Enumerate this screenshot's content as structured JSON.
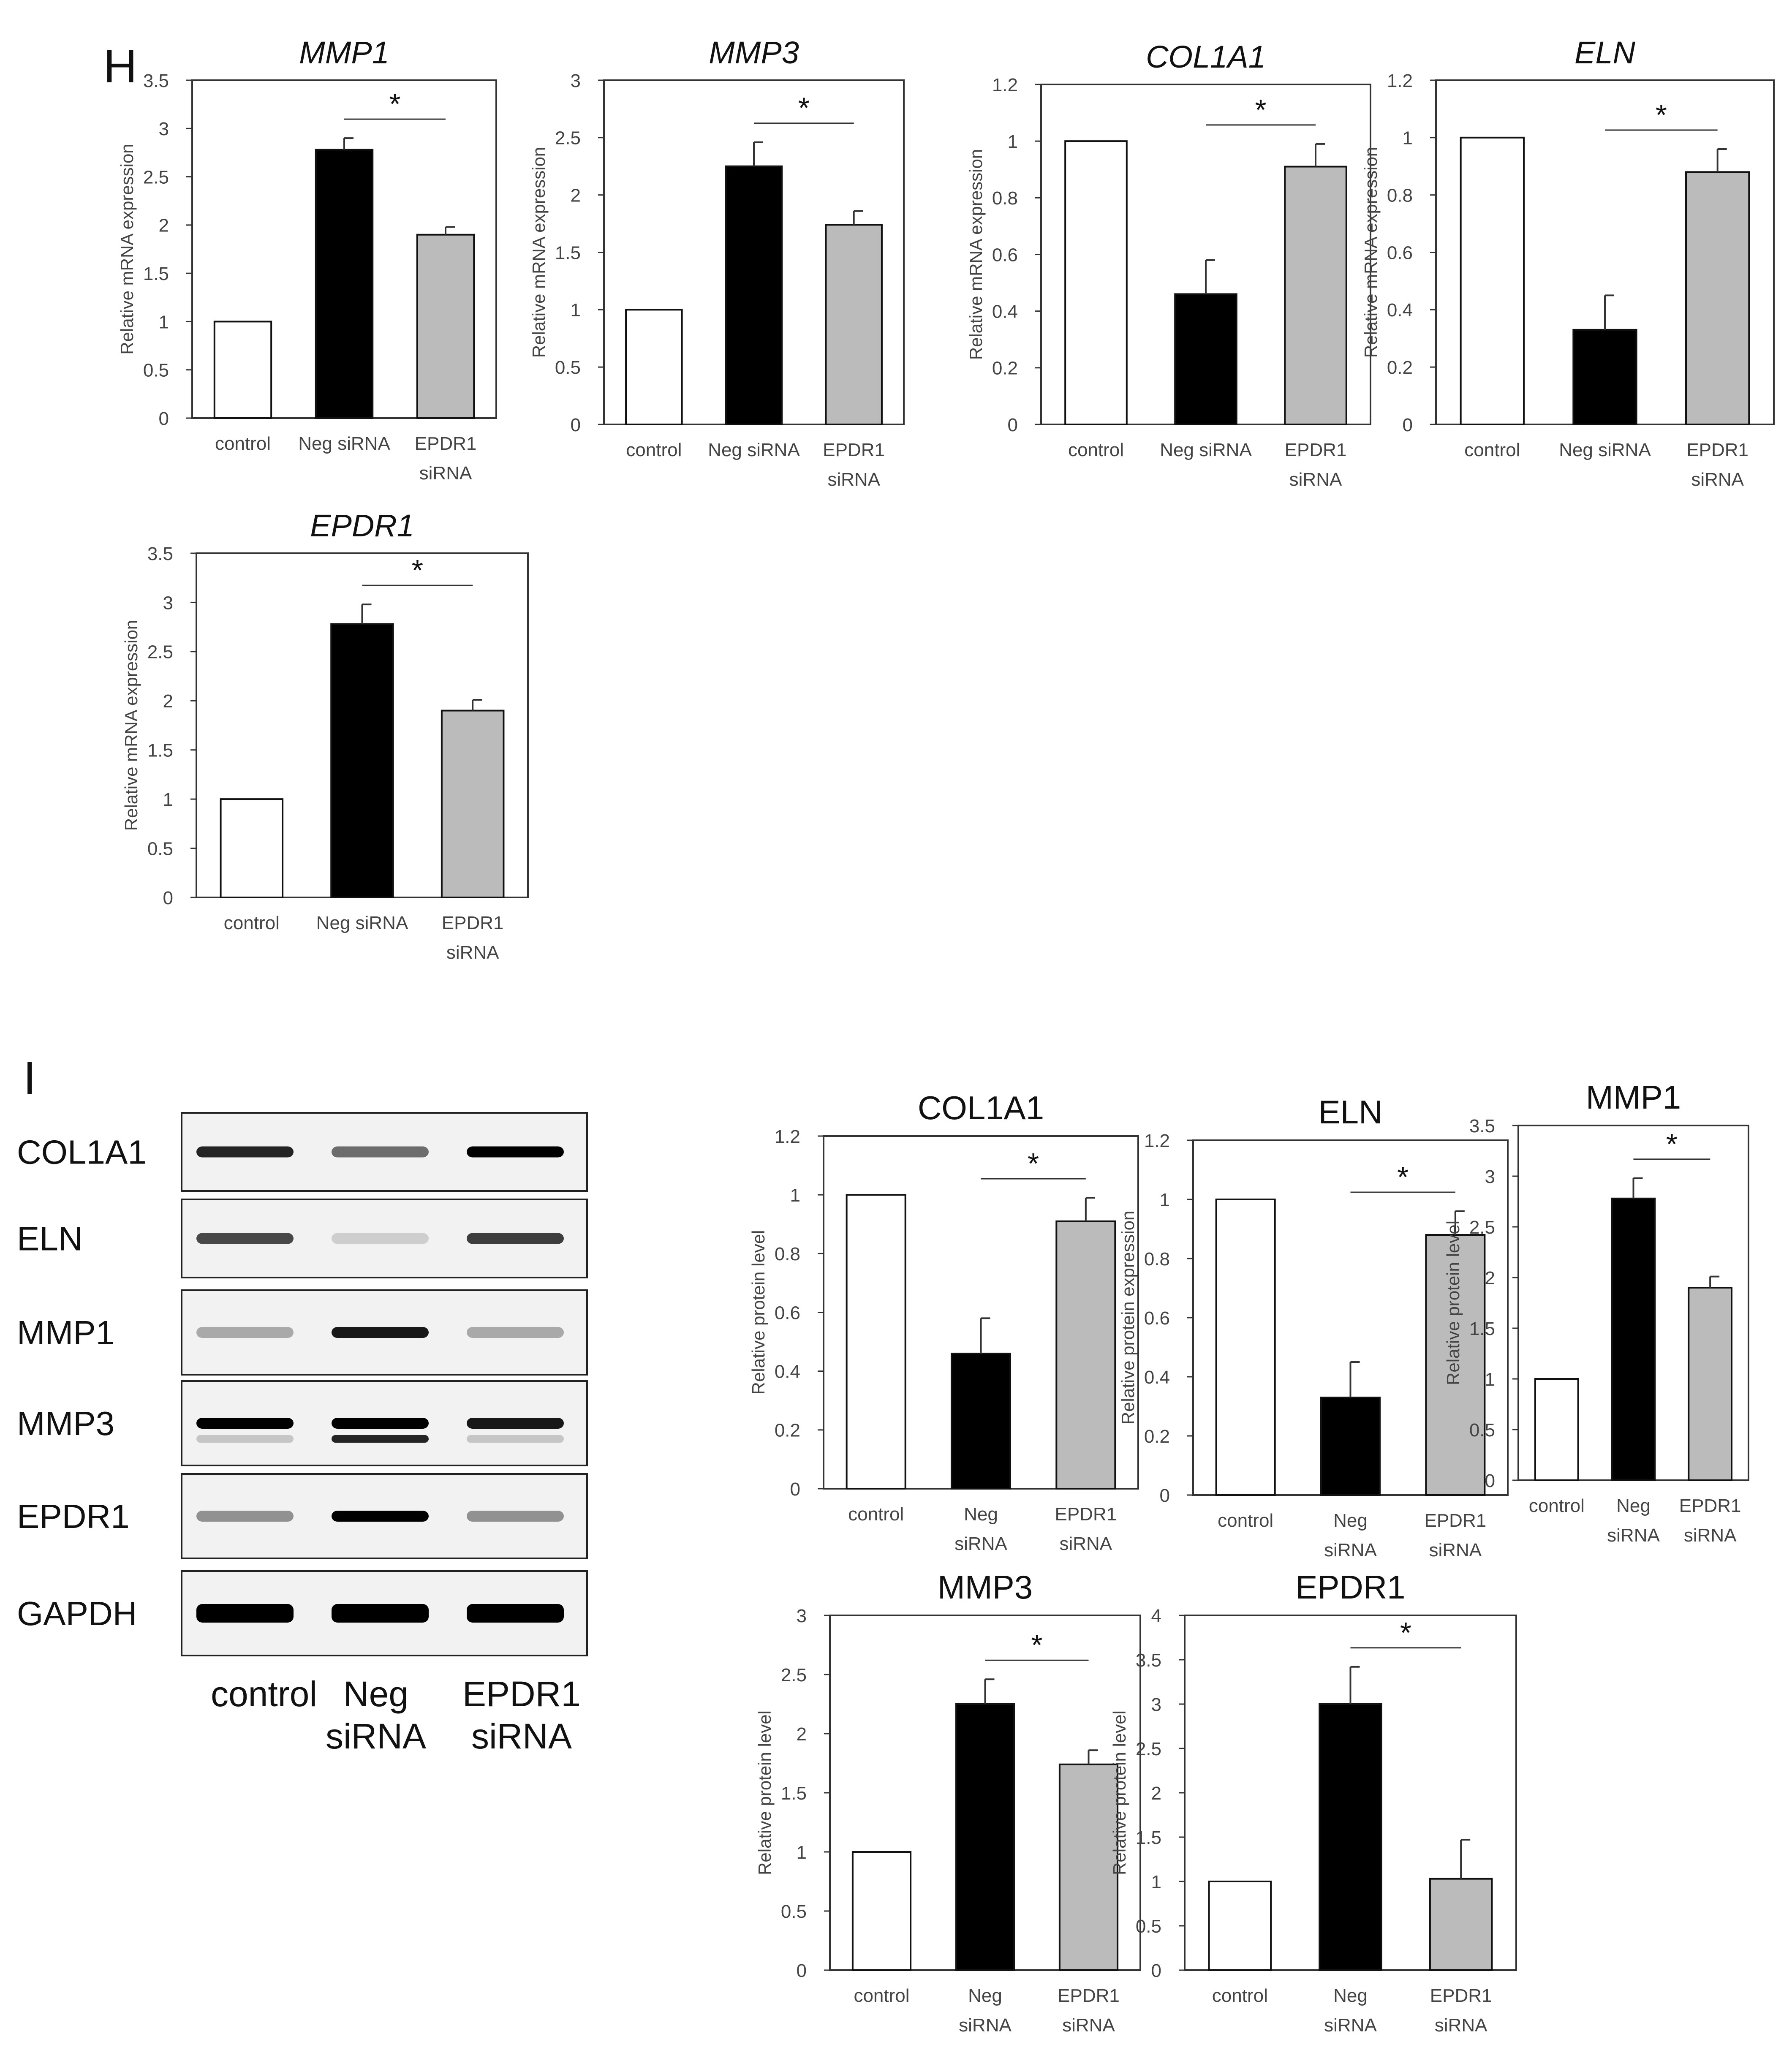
{
  "panels": {
    "H": "H",
    "I": "I"
  },
  "categories": [
    "control",
    "Neg siRNA",
    "EPDR1 siRNA"
  ],
  "bar_fills": [
    "#ffffff",
    "#000000",
    "#bbbbbb"
  ],
  "significance_marker": "*",
  "blot": {
    "rows": [
      "COL1A1",
      "ELN",
      "MMP1",
      "MMP3",
      "EPDR1",
      "GAPDH"
    ],
    "lanes": [
      "control",
      "Neg siRNA",
      "EPDR1 siRNA"
    ]
  },
  "chart_data": [
    {
      "id": "h-mmp1",
      "type": "bar",
      "title": "MMP1",
      "title_italic": true,
      "ylabel": "Relative mRNA expression",
      "categories": [
        "control",
        "Neg siRNA",
        "EPDR1 siRNA"
      ],
      "values": [
        1.0,
        2.78,
        1.9
      ],
      "errors": [
        0,
        0.12,
        0.08
      ],
      "ylim": [
        0,
        3.5
      ],
      "yticks": [
        "0",
        "0.5",
        "1",
        "1.5",
        "2",
        "2.5",
        "3",
        "3.5"
      ],
      "significance": {
        "from": 1,
        "to": 2,
        "label": "*"
      }
    },
    {
      "id": "h-mmp3",
      "type": "bar",
      "title": "MMP3",
      "title_italic": true,
      "ylabel": "Relative mRNA expression",
      "categories": [
        "control",
        "Neg siRNA",
        "EPDR1 siRNA"
      ],
      "values": [
        1.0,
        2.25,
        1.74
      ],
      "errors": [
        0,
        0.21,
        0.12
      ],
      "ylim": [
        0,
        3
      ],
      "yticks": [
        "0",
        "0.5",
        "1",
        "1.5",
        "2",
        "2.5",
        "3"
      ],
      "significance": {
        "from": 1,
        "to": 2,
        "label": "*"
      }
    },
    {
      "id": "h-col1a1",
      "type": "bar",
      "title": "COL1A1",
      "title_italic": true,
      "ylabel": "Relative mRNA expression",
      "categories": [
        "control",
        "Neg siRNA",
        "EPDR1 siRNA"
      ],
      "values": [
        1.0,
        0.46,
        0.91
      ],
      "errors": [
        0,
        0.12,
        0.08
      ],
      "ylim": [
        0,
        1.2
      ],
      "yticks": [
        "0",
        "0.2",
        "0.4",
        "0.6",
        "0.8",
        "1",
        "1.2"
      ],
      "significance": {
        "from": 1,
        "to": 2,
        "label": "*"
      }
    },
    {
      "id": "h-eln",
      "type": "bar",
      "title": "ELN",
      "title_italic": true,
      "ylabel": "Relative mRNA expression",
      "categories": [
        "control",
        "Neg siRNA",
        "EPDR1 siRNA"
      ],
      "values": [
        1.0,
        0.33,
        0.88
      ],
      "errors": [
        0,
        0.12,
        0.08
      ],
      "ylim": [
        0,
        1.2
      ],
      "yticks": [
        "0",
        "0.2",
        "0.4",
        "0.6",
        "0.8",
        "1",
        "1.2"
      ],
      "significance": {
        "from": 1,
        "to": 2,
        "label": "*"
      }
    },
    {
      "id": "h-epdr1",
      "type": "bar",
      "title": "EPDR1",
      "title_italic": true,
      "ylabel": "Relative mRNA expression",
      "categories": [
        "control",
        "Neg siRNA",
        "EPDR1 siRNA"
      ],
      "values": [
        1.0,
        2.78,
        1.9
      ],
      "errors": [
        0,
        0.2,
        0.11
      ],
      "ylim": [
        0,
        3.5
      ],
      "yticks": [
        "0",
        "0.5",
        "1",
        "1.5",
        "2",
        "2.5",
        "3",
        "3.5"
      ],
      "significance": {
        "from": 1,
        "to": 2,
        "label": "*"
      }
    },
    {
      "id": "i-col1a1",
      "type": "bar",
      "title": "COL1A1",
      "title_italic": false,
      "ylabel": "Relative protein level",
      "categories": [
        "control",
        "Neg siRNA",
        "EPDR1 siRNA"
      ],
      "values": [
        1.0,
        0.46,
        0.91
      ],
      "errors": [
        0,
        0.12,
        0.08
      ],
      "ylim": [
        0,
        1.2
      ],
      "yticks": [
        "0",
        "0.2",
        "0.4",
        "0.6",
        "0.8",
        "1",
        "1.2"
      ],
      "significance": {
        "from": 1,
        "to": 2,
        "label": "*"
      }
    },
    {
      "id": "i-eln",
      "type": "bar",
      "title": "ELN",
      "title_italic": false,
      "ylabel": "Relative protein expression",
      "categories": [
        "control",
        "Neg siRNA",
        "EPDR1 siRNA"
      ],
      "values": [
        1.0,
        0.33,
        0.88
      ],
      "errors": [
        0,
        0.12,
        0.08
      ],
      "ylim": [
        0,
        1.2
      ],
      "yticks": [
        "0",
        "0.2",
        "0.4",
        "0.6",
        "0.8",
        "1",
        "1.2"
      ],
      "significance": {
        "from": 1,
        "to": 2,
        "label": "*"
      }
    },
    {
      "id": "i-mmp1",
      "type": "bar",
      "title": "MMP1",
      "title_italic": false,
      "ylabel": "Relative protein level",
      "categories": [
        "control",
        "Neg siRNA",
        "EPDR1 siRNA"
      ],
      "values": [
        1.0,
        2.78,
        1.9
      ],
      "errors": [
        0,
        0.2,
        0.11
      ],
      "ylim": [
        0,
        3.5
      ],
      "yticks": [
        "0",
        "0.5",
        "1",
        "1.5",
        "2",
        "2.5",
        "3",
        "3.5"
      ],
      "significance": {
        "from": 1,
        "to": 2,
        "label": "*"
      }
    },
    {
      "id": "i-mmp3",
      "type": "bar",
      "title": "MMP3",
      "title_italic": false,
      "ylabel": "Relative protein level",
      "categories": [
        "control",
        "Neg siRNA",
        "EPDR1 siRNA"
      ],
      "values": [
        1.0,
        2.25,
        1.74
      ],
      "errors": [
        0,
        0.21,
        0.12
      ],
      "ylim": [
        0,
        3
      ],
      "yticks": [
        "0",
        "0.5",
        "1",
        "1.5",
        "2",
        "2.5",
        "3"
      ],
      "significance": {
        "from": 1,
        "to": 2,
        "label": "*"
      }
    },
    {
      "id": "i-epdr1",
      "type": "bar",
      "title": "EPDR1",
      "title_italic": false,
      "ylabel": "Relative protein level",
      "categories": [
        "control",
        "Neg siRNA",
        "EPDR1 siRNA"
      ],
      "values": [
        1.0,
        3.0,
        1.03
      ],
      "errors": [
        0,
        0.42,
        0.44
      ],
      "ylim": [
        0,
        4
      ],
      "yticks": [
        "0",
        "0.5",
        "1",
        "1.5",
        "2",
        "2.5",
        "3",
        "3.5",
        "4"
      ],
      "significance": {
        "from": 1,
        "to": 2,
        "label": "*"
      }
    }
  ]
}
